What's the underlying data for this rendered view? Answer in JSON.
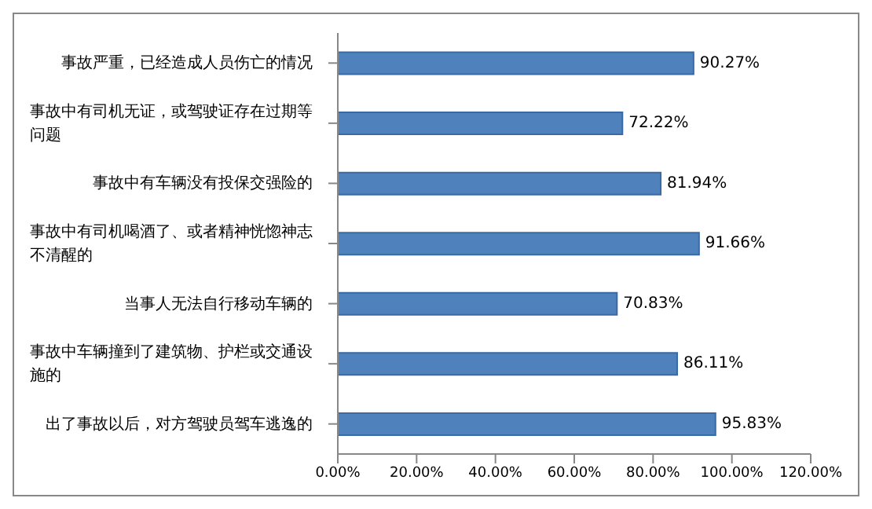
{
  "chart_data": {
    "type": "bar",
    "orientation": "horizontal",
    "categories": [
      "事故严重，已经造成人员伤亡的情况",
      "事故中有司机无证，或驾驶证存在过期等问题",
      "事故中有车辆没有投保交强险的",
      "事故中有司机喝酒了、或者精神恍惚神志不清醒的",
      "当事人无法自行移动车辆的",
      "事故中车辆撞到了建筑物、护栏或交通设施的",
      "出了事故以后，对方驾驶员驾车逃逸的"
    ],
    "values": [
      90.27,
      72.22,
      81.94,
      91.66,
      70.83,
      86.11,
      95.83
    ],
    "value_labels": [
      "90.27%",
      "72.22%",
      "81.94%",
      "91.66%",
      "70.83%",
      "86.11%",
      "95.83%"
    ],
    "color": "#4f81bd",
    "xlim": [
      0,
      120
    ],
    "xticks": [
      {
        "value": 0,
        "label": "0.00%"
      },
      {
        "value": 20,
        "label": "20.00%"
      },
      {
        "value": 40,
        "label": "40.00%"
      },
      {
        "value": 60,
        "label": "60.00%"
      },
      {
        "value": 80,
        "label": "80.00%"
      },
      {
        "value": 100,
        "label": "100.00%"
      },
      {
        "value": 120,
        "label": "120.00%"
      }
    ],
    "grid": false
  }
}
